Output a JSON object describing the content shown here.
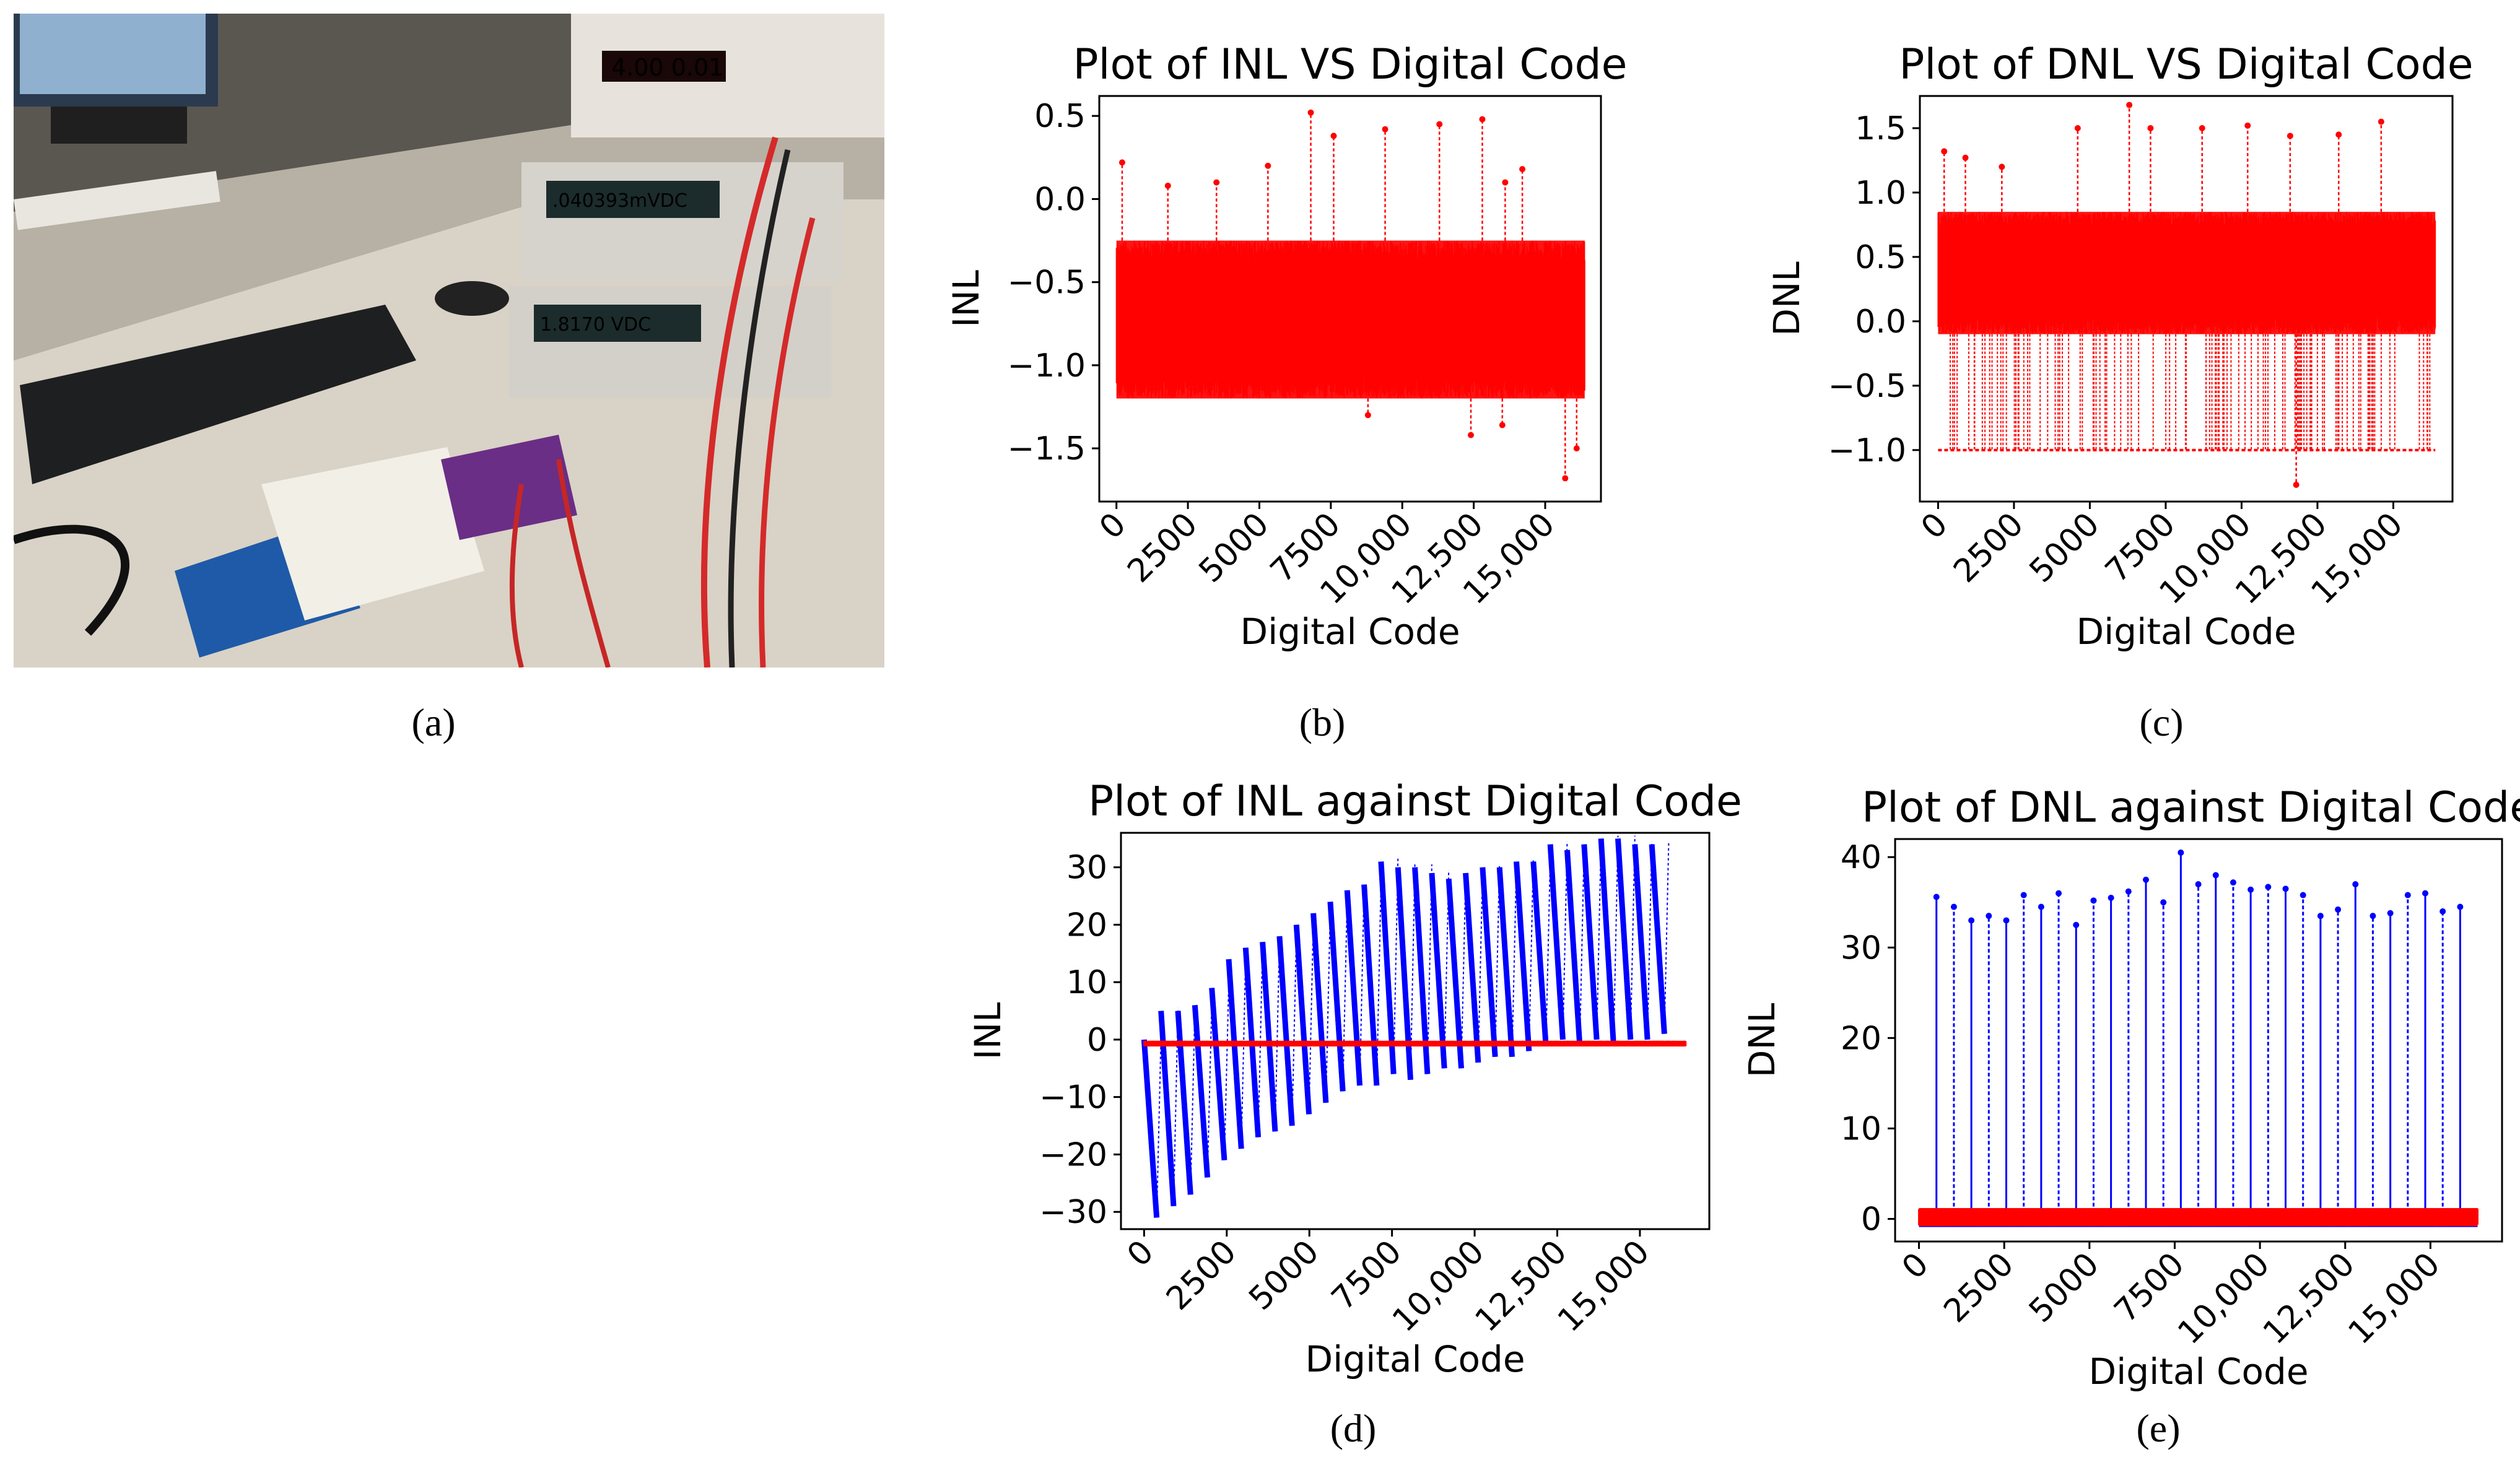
{
  "captions": {
    "a": "(a)",
    "b": "(b)",
    "c": "(c)",
    "d": "(d)",
    "e": "(e)"
  },
  "photo": {
    "instrument_readout_top": "4.00  0.01",
    "dmm1_readout": ".040393mVDC",
    "dmm2_readout": "1.8170 VDC"
  },
  "colors": {
    "measured": "#ff0000",
    "ideal": "#0000ff",
    "axis": "#000000"
  },
  "chart_data": [
    {
      "id": "b",
      "type": "line",
      "title": "Plot of INL VS Digital Code",
      "xlabel": "Digital Code",
      "ylabel": "INL",
      "xlim": [
        -600,
        16950
      ],
      "ylim": [
        -1.82,
        0.62
      ],
      "xticks": [
        0,
        2500,
        5000,
        7500,
        10000,
        12500,
        15000
      ],
      "xtick_labels": [
        "0",
        "2500",
        "5000",
        "7500",
        "10,000",
        "12,500",
        "15,000"
      ],
      "yticks": [
        -1.5,
        -1.0,
        -0.5,
        0.0,
        0.5
      ],
      "ytick_labels": [
        "−1.5",
        "−1.0",
        "−0.5",
        "0.0",
        "0.5"
      ],
      "series": [
        {
          "color": "#ff0000",
          "style": "dotted-markers",
          "band_x": [
            0,
            16383
          ],
          "band_low": -1.2,
          "band_high": -0.25,
          "outliers_high": [
            [
              200,
              0.22
            ],
            [
              1800,
              0.08
            ],
            [
              3500,
              0.1
            ],
            [
              5300,
              0.2
            ],
            [
              6800,
              0.52
            ],
            [
              7600,
              0.38
            ],
            [
              9400,
              0.42
            ],
            [
              11300,
              0.45
            ],
            [
              12800,
              0.48
            ],
            [
              13600,
              0.1
            ],
            [
              14200,
              0.18
            ]
          ],
          "outliers_low": [
            [
              8800,
              -1.3
            ],
            [
              12400,
              -1.42
            ],
            [
              15700,
              -1.68
            ],
            [
              16100,
              -1.5
            ],
            [
              13500,
              -1.36
            ]
          ]
        }
      ]
    },
    {
      "id": "c",
      "type": "line",
      "title": "Plot of DNL VS Digital Code",
      "xlabel": "Digital Code",
      "ylabel": "DNL",
      "xlim": [
        -600,
        16950
      ],
      "ylim": [
        -1.4,
        1.75
      ],
      "xticks": [
        0,
        2500,
        5000,
        7500,
        10000,
        12500,
        15000
      ],
      "xtick_labels": [
        "0",
        "2500",
        "5000",
        "7500",
        "10,000",
        "12,500",
        "15,000"
      ],
      "yticks": [
        -1.0,
        -0.5,
        0.0,
        0.5,
        1.0,
        1.5
      ],
      "ytick_labels": [
        "−1.0",
        "−0.5",
        "0.0",
        "0.5",
        "1.0",
        "1.5"
      ],
      "series": [
        {
          "color": "#ff0000",
          "style": "dotted-markers",
          "band_x": [
            0,
            16383
          ],
          "band_low": -0.1,
          "band_high": 0.85,
          "outliers_high": [
            [
              200,
              1.32
            ],
            [
              900,
              1.27
            ],
            [
              2100,
              1.2
            ],
            [
              4600,
              1.5
            ],
            [
              6300,
              1.68
            ],
            [
              7000,
              1.5
            ],
            [
              8700,
              1.5
            ],
            [
              10200,
              1.52
            ],
            [
              11600,
              1.44
            ],
            [
              13200,
              1.45
            ],
            [
              14600,
              1.55
            ]
          ],
          "outliers_low": [
            [
              11800,
              -1.27
            ]
          ],
          "floor": -1.0
        }
      ]
    },
    {
      "id": "d",
      "type": "line",
      "title": "Plot of INL against Digital Code",
      "xlabel": "Digital Code",
      "ylabel": "INL",
      "xlim": [
        -700,
        17100
      ],
      "ylim": [
        -33,
        36
      ],
      "xticks": [
        0,
        2500,
        5000,
        7500,
        10000,
        12500,
        15000
      ],
      "xtick_labels": [
        "0",
        "2500",
        "5000",
        "7500",
        "10,000",
        "12,500",
        "15,000"
      ],
      "yticks": [
        -30,
        -20,
        -10,
        0,
        10,
        20,
        30
      ],
      "ytick_labels": [
        "−30",
        "−20",
        "−10",
        "0",
        "10",
        "20",
        "30"
      ],
      "series": [
        {
          "color": "#0000ff",
          "style": "sawtooth",
          "segments": [
            [
              0,
              0,
              -31
            ],
            [
              512,
              5,
              -29
            ],
            [
              1024,
              5,
              -27
            ],
            [
              1536,
              6,
              -24
            ],
            [
              2048,
              9,
              -21
            ],
            [
              2560,
              14,
              -19
            ],
            [
              3072,
              16,
              -17
            ],
            [
              3584,
              17,
              -16
            ],
            [
              4096,
              18,
              -15
            ],
            [
              4608,
              20,
              -13
            ],
            [
              5120,
              22,
              -11
            ],
            [
              5632,
              24,
              -9
            ],
            [
              6144,
              26,
              -8
            ],
            [
              6656,
              27,
              -8
            ],
            [
              7168,
              31,
              -6
            ],
            [
              7680,
              30,
              -7
            ],
            [
              8192,
              30,
              -6
            ],
            [
              8704,
              29,
              -5
            ],
            [
              9216,
              28,
              -5
            ],
            [
              9728,
              29,
              -4
            ],
            [
              10240,
              30,
              -3
            ],
            [
              10752,
              30,
              -3
            ],
            [
              11264,
              31,
              -2
            ],
            [
              11776,
              31,
              -1
            ],
            [
              12288,
              34,
              0
            ],
            [
              12800,
              33,
              -1
            ],
            [
              13312,
              34,
              0
            ],
            [
              13824,
              35,
              -1
            ],
            [
              14336,
              35,
              0
            ],
            [
              14848,
              34,
              0
            ],
            [
              15360,
              34,
              1
            ]
          ]
        },
        {
          "color": "#ff0000",
          "style": "markers",
          "band_x": [
            0,
            16383
          ],
          "band_low": -1.2,
          "band_high": -0.2
        }
      ]
    },
    {
      "id": "e",
      "type": "line",
      "title": "Plot of DNL against Digital Code",
      "xlabel": "Digital Code",
      "ylabel": "DNL",
      "xlim": [
        -700,
        17100
      ],
      "ylim": [
        -2.5,
        42
      ],
      "xticks": [
        0,
        2500,
        5000,
        7500,
        10000,
        12500,
        15000
      ],
      "xtick_labels": [
        "0",
        "2500",
        "5000",
        "7500",
        "10,000",
        "12,500",
        "15,000"
      ],
      "yticks": [
        0,
        10,
        20,
        30,
        40
      ],
      "ytick_labels": [
        "0",
        "10",
        "20",
        "30",
        "40"
      ],
      "series": [
        {
          "color": "#0000ff",
          "style": "spikes",
          "spikes": [
            [
              512,
              35.6
            ],
            [
              1024,
              34.5
            ],
            [
              1536,
              33
            ],
            [
              2048,
              33.5
            ],
            [
              2560,
              33
            ],
            [
              3072,
              35.8
            ],
            [
              3584,
              34.5
            ],
            [
              4096,
              36
            ],
            [
              4608,
              32.5
            ],
            [
              5120,
              35.2
            ],
            [
              5632,
              35.5
            ],
            [
              6144,
              36.2
            ],
            [
              6656,
              37.5
            ],
            [
              7168,
              35
            ],
            [
              7680,
              40.5
            ],
            [
              8192,
              37
            ],
            [
              8704,
              38
            ],
            [
              9216,
              37.2
            ],
            [
              9728,
              36.4
            ],
            [
              10240,
              36.7
            ],
            [
              10752,
              36.5
            ],
            [
              11264,
              35.8
            ],
            [
              11776,
              33.5
            ],
            [
              12288,
              34.2
            ],
            [
              12800,
              37
            ],
            [
              13312,
              33.5
            ],
            [
              13824,
              33.8
            ],
            [
              14336,
              35.8
            ],
            [
              14848,
              36
            ],
            [
              15360,
              34
            ],
            [
              15872,
              34.5
            ]
          ]
        },
        {
          "color": "#ff0000",
          "style": "markers",
          "band_x": [
            0,
            16383
          ],
          "band_low": -0.8,
          "band_high": 1.2
        }
      ]
    }
  ]
}
